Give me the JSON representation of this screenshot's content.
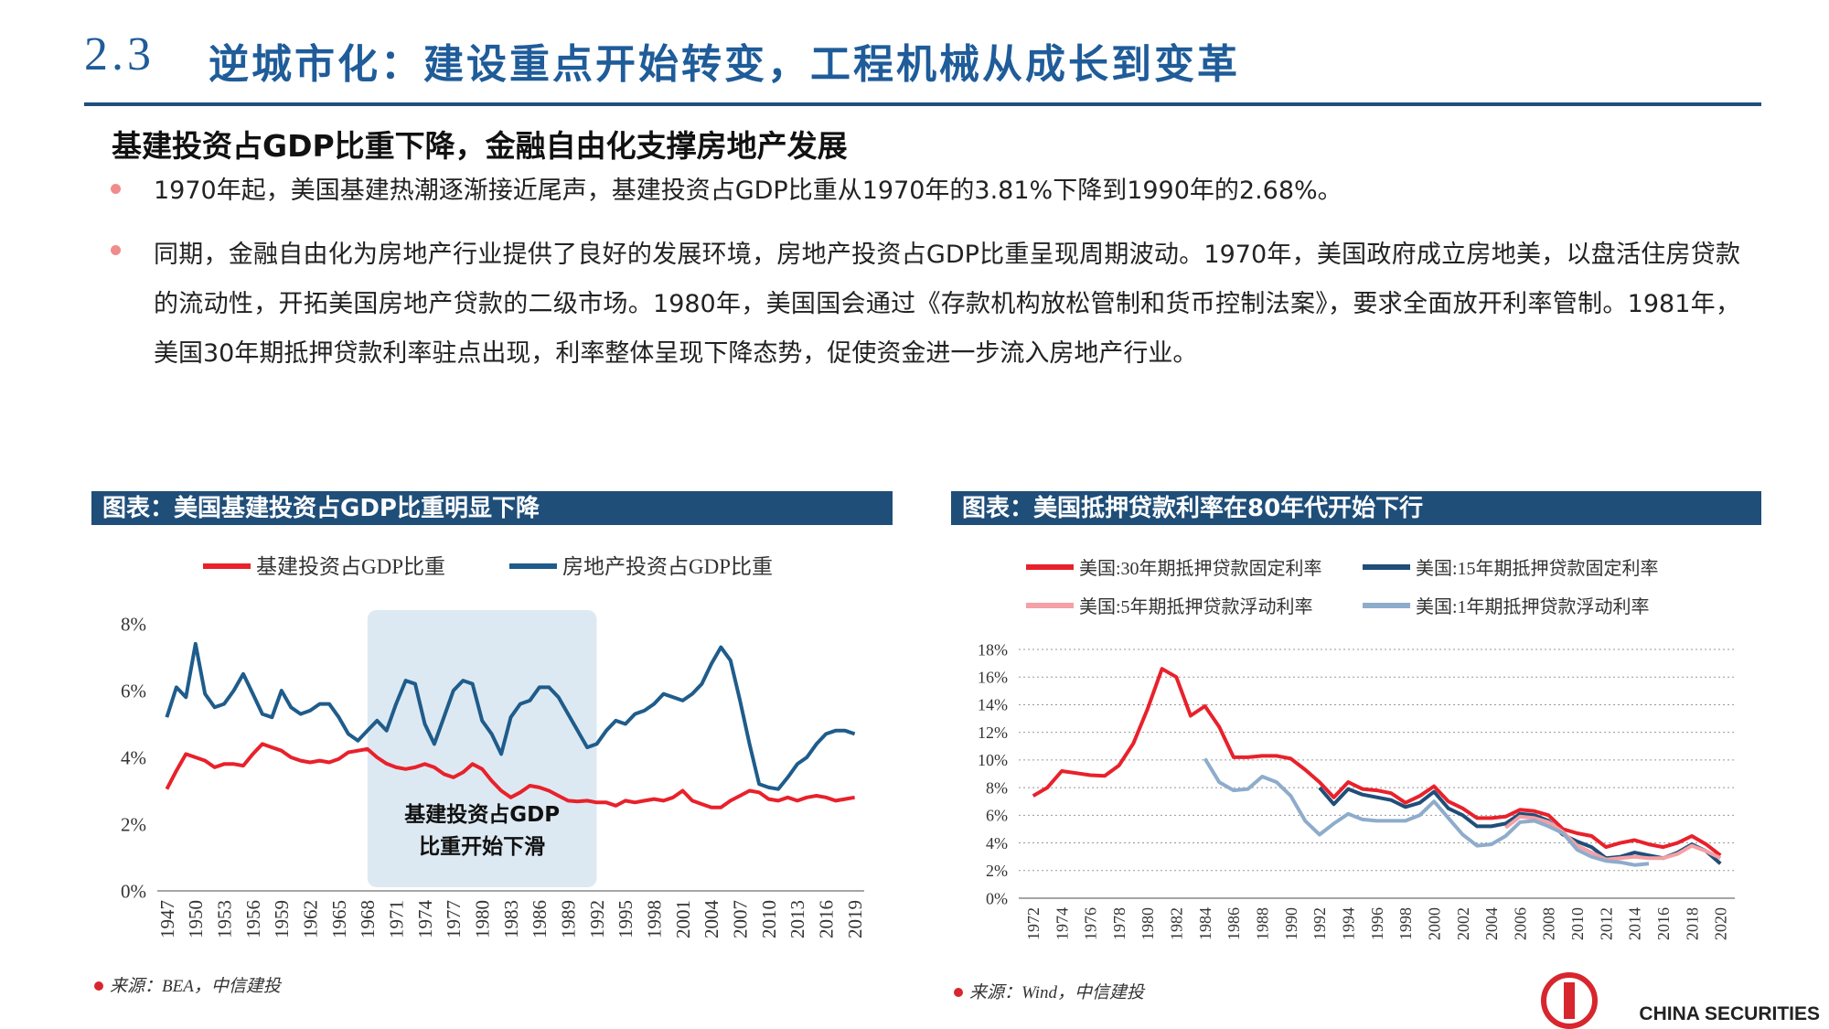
{
  "header": {
    "number": "2.3",
    "title": "逆城市化：建设重点开始转变，工程机械从成长到变革"
  },
  "subtitle": "基建投资占GDP比重下降，金融自由化支撑房地产发展",
  "bullets": [
    "1970年起，美国基建热潮逐渐接近尾声，基建投资占GDP比重从1970年的3.81%下降到1990年的2.68%。",
    "同期，金融自由化为房地产行业提供了良好的发展环境，房地产投资占GDP比重呈现周期波动。1970年，美国政府成立房地美，以盘活住房贷款的流动性，开拓美国房地产贷款的二级市场。1980年，美国国会通过《存款机构放松管制和货币控制法案》，要求全面放开利率管制。1981年，美国30年期抵押贷款利率驻点出现，利率整体呈现下降态势，促使资金进一步流入房地产行业。"
  ],
  "logo": "CHINA SECURITIES",
  "chart_data": [
    {
      "type": "line",
      "title": "图表：美国基建投资占GDP比重明显下降",
      "source": "来源：BEA，中信建投",
      "x": [
        1947,
        1948,
        1949,
        1950,
        1951,
        1952,
        1953,
        1954,
        1955,
        1956,
        1957,
        1958,
        1959,
        1960,
        1961,
        1962,
        1963,
        1964,
        1965,
        1966,
        1967,
        1968,
        1969,
        1970,
        1971,
        1972,
        1973,
        1974,
        1975,
        1976,
        1977,
        1978,
        1979,
        1980,
        1981,
        1982,
        1983,
        1984,
        1985,
        1986,
        1987,
        1988,
        1989,
        1990,
        1991,
        1992,
        1993,
        1994,
        1995,
        1996,
        1997,
        1998,
        1999,
        2000,
        2001,
        2002,
        2003,
        2004,
        2005,
        2006,
        2007,
        2008,
        2009,
        2010,
        2011,
        2012,
        2013,
        2014,
        2015,
        2016,
        2017,
        2018,
        2019
      ],
      "series": [
        {
          "name": "基建投资占GDP比重",
          "color": "#e8212b",
          "values": [
            3.05,
            3.6,
            4.1,
            4.0,
            3.9,
            3.7,
            3.8,
            3.8,
            3.75,
            4.1,
            4.4,
            4.3,
            4.2,
            4.0,
            3.9,
            3.85,
            3.9,
            3.85,
            3.95,
            4.15,
            4.2,
            4.25,
            4.0,
            3.81,
            3.7,
            3.65,
            3.7,
            3.8,
            3.7,
            3.5,
            3.4,
            3.55,
            3.8,
            3.65,
            3.3,
            3.0,
            2.8,
            2.95,
            3.15,
            3.1,
            3.0,
            2.85,
            2.7,
            2.68,
            2.7,
            2.65,
            2.65,
            2.55,
            2.7,
            2.65,
            2.7,
            2.75,
            2.7,
            2.8,
            3.0,
            2.7,
            2.6,
            2.5,
            2.5,
            2.7,
            2.85,
            3.0,
            2.95,
            2.75,
            2.7,
            2.8,
            2.7,
            2.8,
            2.85,
            2.8,
            2.7,
            2.75,
            2.8
          ]
        },
        {
          "name": "房地产投资占GDP比重",
          "color": "#1f5c8b",
          "values": [
            5.2,
            6.1,
            5.8,
            7.4,
            5.9,
            5.5,
            5.6,
            6.0,
            6.5,
            5.9,
            5.3,
            5.2,
            6.0,
            5.5,
            5.3,
            5.4,
            5.6,
            5.6,
            5.2,
            4.7,
            4.5,
            4.8,
            5.1,
            4.8,
            5.6,
            6.3,
            6.2,
            5.0,
            4.4,
            5.2,
            6.0,
            6.3,
            6.2,
            5.1,
            4.7,
            4.1,
            5.2,
            5.6,
            5.7,
            6.1,
            6.1,
            5.8,
            5.3,
            4.8,
            4.3,
            4.4,
            4.8,
            5.1,
            5.0,
            5.3,
            5.4,
            5.6,
            5.9,
            5.8,
            5.7,
            5.9,
            6.2,
            6.8,
            7.3,
            6.9,
            5.7,
            4.4,
            3.2,
            3.1,
            3.05,
            3.4,
            3.8,
            4.0,
            4.4,
            4.7,
            4.8,
            4.8,
            4.7
          ]
        }
      ],
      "xlim": [
        1946,
        2020
      ],
      "xticks": [
        1947,
        1950,
        1953,
        1956,
        1959,
        1962,
        1965,
        1968,
        1971,
        1974,
        1977,
        1980,
        1983,
        1986,
        1989,
        1992,
        1995,
        1998,
        2001,
        2004,
        2007,
        2010,
        2013,
        2016,
        2019
      ],
      "ylim": [
        0,
        8
      ],
      "yticks": [
        {
          "value": 0,
          "label": "0%"
        },
        {
          "value": 2,
          "label": "2%"
        },
        {
          "value": 4,
          "label": "4%"
        },
        {
          "value": 6,
          "label": "6%"
        },
        {
          "value": 8,
          "label": "8%"
        }
      ],
      "grid": false,
      "highlight_x": [
        1968,
        1992
      ],
      "annotation": [
        "基建投资占GDP",
        "比重开始下滑"
      ]
    },
    {
      "type": "line",
      "title": "图表：美国抵押贷款利率在80年代开始下行",
      "source": "来源：Wind，中信建投",
      "x": [
        1972,
        1973,
        1974,
        1975,
        1976,
        1977,
        1978,
        1979,
        1980,
        1981,
        1982,
        1983,
        1984,
        1985,
        1986,
        1987,
        1988,
        1989,
        1990,
        1991,
        1992,
        1993,
        1994,
        1995,
        1996,
        1997,
        1998,
        1999,
        2000,
        2001,
        2002,
        2003,
        2004,
        2005,
        2006,
        2007,
        2008,
        2009,
        2010,
        2011,
        2012,
        2013,
        2014,
        2015,
        2016,
        2017,
        2018,
        2019,
        2020
      ],
      "series": [
        {
          "name": "美国:30年期抵押贷款固定利率",
          "color": "#e8212b",
          "values": [
            7.4,
            8.0,
            9.2,
            9.05,
            8.9,
            8.85,
            9.6,
            11.2,
            13.7,
            16.6,
            16.0,
            13.2,
            13.9,
            12.4,
            10.2,
            10.2,
            10.3,
            10.3,
            10.1,
            9.3,
            8.4,
            7.3,
            8.4,
            7.9,
            7.8,
            7.6,
            6.9,
            7.4,
            8.1,
            7.0,
            6.5,
            5.8,
            5.8,
            5.9,
            6.4,
            6.3,
            6.0,
            5.0,
            4.7,
            4.5,
            3.7,
            4.0,
            4.2,
            3.9,
            3.7,
            4.0,
            4.5,
            3.9,
            3.1
          ]
        },
        {
          "name": "美国:15年期抵押贷款固定利率",
          "color": "#1f4e79",
          "values": [
            null,
            null,
            null,
            null,
            null,
            null,
            null,
            null,
            null,
            null,
            null,
            null,
            null,
            null,
            null,
            null,
            null,
            null,
            null,
            null,
            8.0,
            6.8,
            7.9,
            7.5,
            7.3,
            7.1,
            6.6,
            6.9,
            7.7,
            6.5,
            6.0,
            5.2,
            5.2,
            5.4,
            6.1,
            6.0,
            5.6,
            4.6,
            4.1,
            3.7,
            2.9,
            3.0,
            3.3,
            3.1,
            2.9,
            3.3,
            3.9,
            3.4,
            2.5
          ]
        },
        {
          "name": "美国:5年期抵押贷款浮动利率",
          "color": "#f4a0a5",
          "values": [
            null,
            null,
            null,
            null,
            null,
            null,
            null,
            null,
            null,
            null,
            null,
            null,
            null,
            null,
            null,
            null,
            null,
            null,
            null,
            null,
            null,
            null,
            null,
            null,
            null,
            null,
            null,
            null,
            null,
            null,
            null,
            null,
            null,
            5.1,
            5.9,
            5.8,
            5.5,
            4.8,
            3.8,
            3.3,
            2.8,
            2.9,
            3.0,
            2.9,
            2.9,
            3.2,
            3.8,
            3.4,
            2.9
          ]
        },
        {
          "name": "美国:1年期抵押贷款浮动利率",
          "color": "#8eaccb",
          "values": [
            null,
            null,
            null,
            null,
            null,
            null,
            null,
            null,
            null,
            null,
            null,
            null,
            10.1,
            8.4,
            7.8,
            7.9,
            8.8,
            8.4,
            7.4,
            5.6,
            4.6,
            5.4,
            6.1,
            5.7,
            5.6,
            5.6,
            5.6,
            6.0,
            7.0,
            5.8,
            4.6,
            3.8,
            3.9,
            4.5,
            5.5,
            5.6,
            5.2,
            4.7,
            3.5,
            3.0,
            2.7,
            2.6,
            2.4,
            2.5,
            null,
            null,
            null,
            null,
            null
          ]
        }
      ],
      "xlim": [
        1971,
        2021
      ],
      "xticks": [
        1972,
        1974,
        1976,
        1978,
        1980,
        1982,
        1984,
        1986,
        1988,
        1990,
        1992,
        1994,
        1996,
        1998,
        2000,
        2002,
        2004,
        2006,
        2008,
        2010,
        2012,
        2014,
        2016,
        2018,
        2020
      ],
      "ylim": [
        0,
        18
      ],
      "yticks": [
        {
          "value": 0,
          "label": "0%"
        },
        {
          "value": 2,
          "label": "2%"
        },
        {
          "value": 4,
          "label": "4%"
        },
        {
          "value": 6,
          "label": "6%"
        },
        {
          "value": 8,
          "label": "8%"
        },
        {
          "value": 10,
          "label": "10%"
        },
        {
          "value": 12,
          "label": "12%"
        },
        {
          "value": 14,
          "label": "14%"
        },
        {
          "value": 16,
          "label": "16%"
        },
        {
          "value": 18,
          "label": "18%"
        }
      ],
      "grid": true
    }
  ]
}
